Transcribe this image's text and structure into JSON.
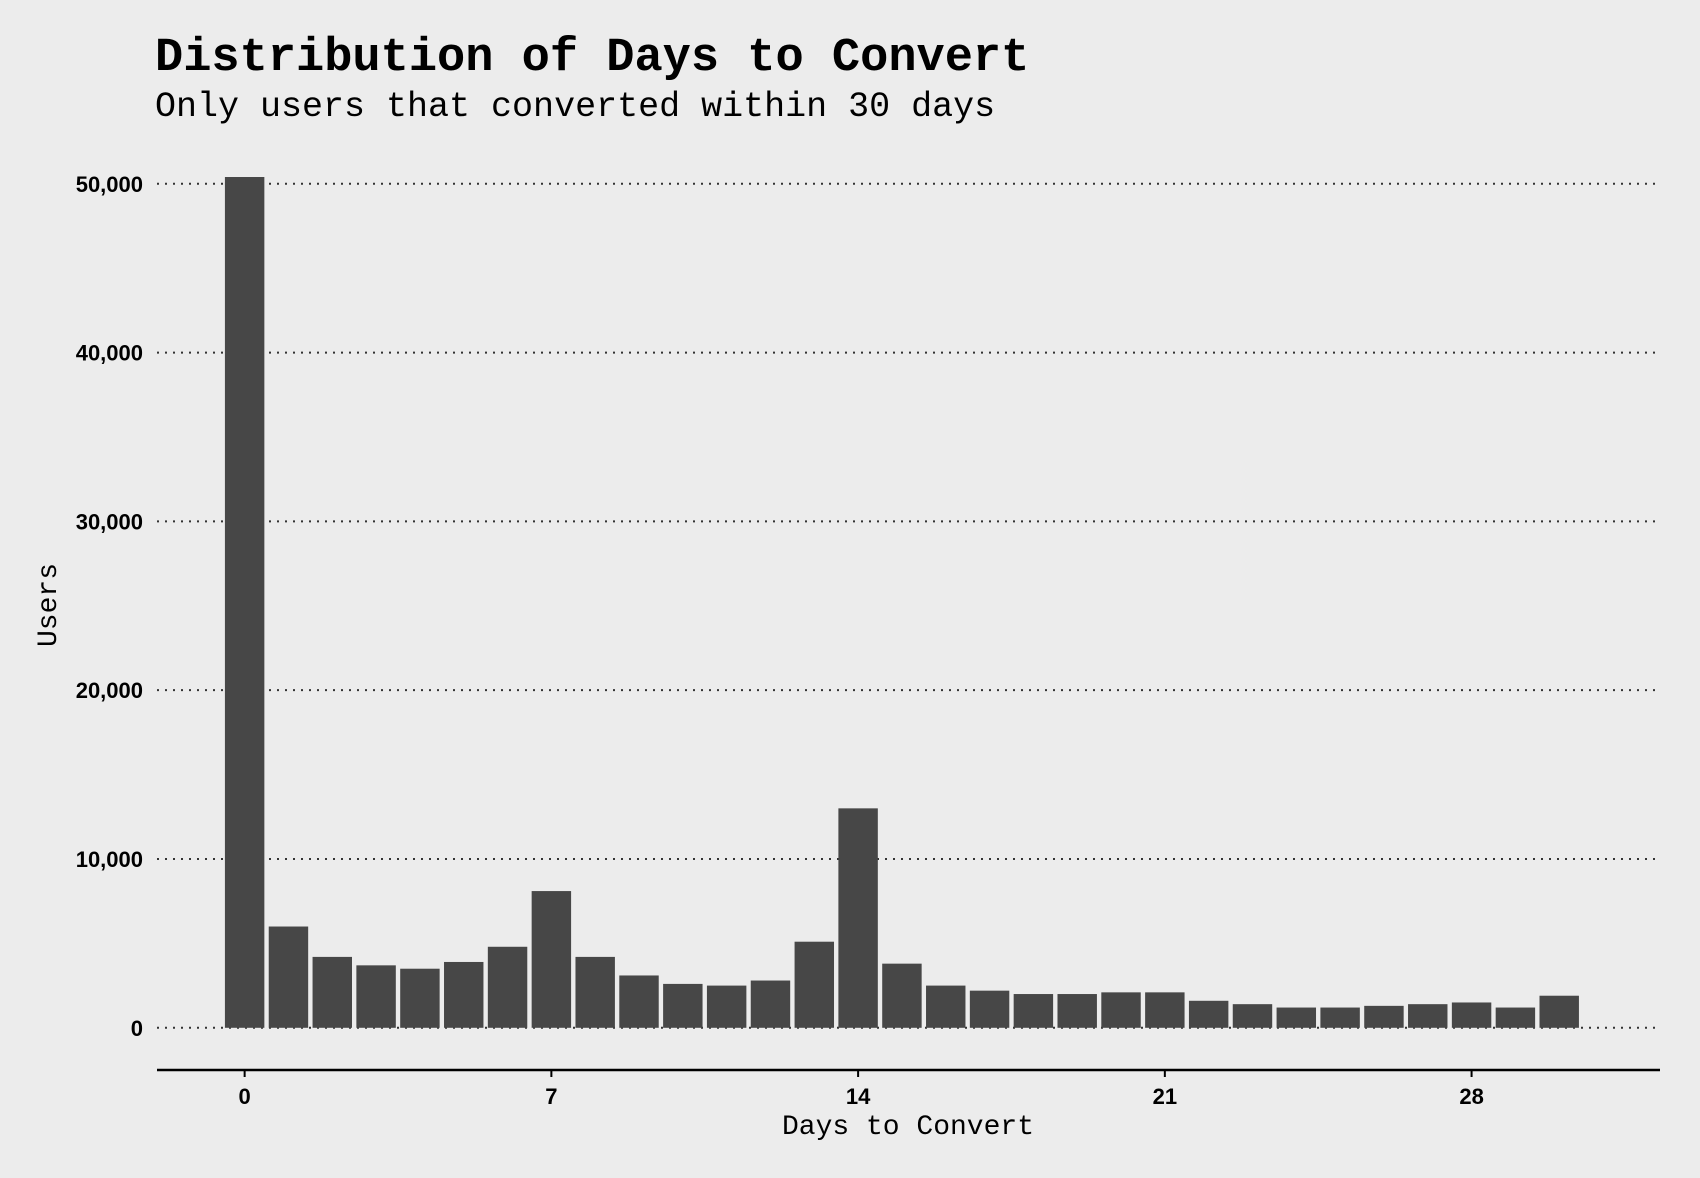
{
  "chart_data": {
    "type": "bar",
    "title": "Distribution of Days to Convert",
    "subtitle": "Only users that converted within 30 days",
    "xlabel": "Days to Convert",
    "ylabel": "Users",
    "x": [
      0,
      1,
      2,
      3,
      4,
      5,
      6,
      7,
      8,
      9,
      10,
      11,
      12,
      13,
      14,
      15,
      16,
      17,
      18,
      19,
      20,
      21,
      22,
      23,
      24,
      25,
      26,
      27,
      28,
      29,
      30
    ],
    "values": [
      50400,
      6000,
      4200,
      3700,
      3500,
      3900,
      4800,
      8100,
      4200,
      3100,
      2600,
      2500,
      2800,
      5100,
      13000,
      3800,
      2500,
      2200,
      2000,
      2000,
      2100,
      2100,
      1600,
      1400,
      1200,
      1200,
      1300,
      1400,
      1500,
      1200,
      1900
    ],
    "ylim": [
      -2500,
      52000
    ],
    "xlim": [
      -2,
      32.3
    ],
    "y_ticks": [
      0,
      10000,
      20000,
      30000,
      40000,
      50000
    ],
    "y_tick_labels": [
      "0",
      "10,000",
      "20,000",
      "30,000",
      "40,000",
      "50,000"
    ],
    "x_ticks": [
      0,
      7,
      14,
      21,
      28
    ],
    "x_tick_labels": [
      "0",
      "7",
      "14",
      "21",
      "28"
    ],
    "grid": "horizontal-dotted",
    "bar_color": "#474747",
    "background_color": "#ececec"
  }
}
